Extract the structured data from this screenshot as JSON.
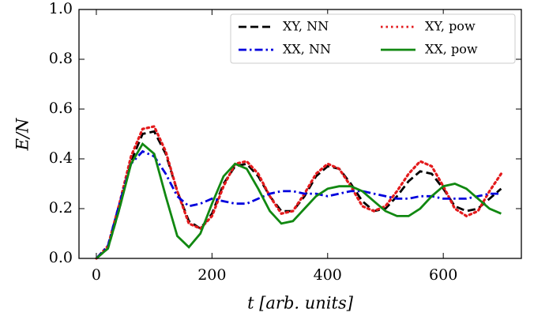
{
  "chart_data": {
    "type": "line",
    "xlabel": "t [arb. units]",
    "ylabel": "E/N",
    "x": [
      0,
      20,
      40,
      60,
      80,
      100,
      120,
      140,
      160,
      180,
      200,
      220,
      240,
      260,
      280,
      300,
      320,
      340,
      360,
      380,
      400,
      420,
      440,
      460,
      480,
      500,
      520,
      540,
      560,
      580,
      600,
      620,
      640,
      660,
      680,
      700
    ],
    "series": [
      {
        "name": "XY, NN",
        "color": "#000000",
        "linestyle": "dashed",
        "values": [
          0,
          0.04,
          0.2,
          0.39,
          0.5,
          0.51,
          0.42,
          0.27,
          0.15,
          0.12,
          0.18,
          0.3,
          0.37,
          0.38,
          0.33,
          0.25,
          0.19,
          0.19,
          0.25,
          0.33,
          0.37,
          0.36,
          0.3,
          0.23,
          0.19,
          0.2,
          0.25,
          0.31,
          0.35,
          0.34,
          0.28,
          0.21,
          0.19,
          0.2,
          0.24,
          0.28
        ]
      },
      {
        "name": "XY, pow",
        "color": "#e31a1c",
        "linestyle": "dotted",
        "values": [
          0,
          0.05,
          0.22,
          0.41,
          0.52,
          0.53,
          0.43,
          0.27,
          0.14,
          0.12,
          0.17,
          0.29,
          0.38,
          0.39,
          0.34,
          0.25,
          0.18,
          0.19,
          0.26,
          0.34,
          0.38,
          0.36,
          0.29,
          0.21,
          0.19,
          0.21,
          0.27,
          0.34,
          0.39,
          0.37,
          0.29,
          0.2,
          0.17,
          0.19,
          0.27,
          0.34
        ]
      },
      {
        "name": "XX, NN",
        "color": "#0000dd",
        "linestyle": "dashdot",
        "values": [
          0,
          0.05,
          0.22,
          0.38,
          0.43,
          0.41,
          0.34,
          0.25,
          0.21,
          0.22,
          0.24,
          0.23,
          0.22,
          0.22,
          0.24,
          0.26,
          0.27,
          0.27,
          0.26,
          0.26,
          0.25,
          0.26,
          0.27,
          0.27,
          0.26,
          0.25,
          0.24,
          0.24,
          0.25,
          0.25,
          0.24,
          0.24,
          0.24,
          0.25,
          0.26,
          0.26
        ]
      },
      {
        "name": "XX, pow",
        "color": "#118811",
        "linestyle": "solid",
        "values": [
          0,
          0.04,
          0.2,
          0.38,
          0.46,
          0.42,
          0.25,
          0.09,
          0.045,
          0.1,
          0.22,
          0.33,
          0.38,
          0.36,
          0.28,
          0.19,
          0.14,
          0.15,
          0.2,
          0.25,
          0.28,
          0.29,
          0.29,
          0.27,
          0.23,
          0.19,
          0.17,
          0.17,
          0.2,
          0.25,
          0.29,
          0.3,
          0.28,
          0.24,
          0.2,
          0.18
        ]
      }
    ],
    "xlim": [
      -30,
      735
    ],
    "xticks": [
      0,
      200,
      400,
      600
    ],
    "ylim": [
      0,
      1
    ],
    "yticks": [
      {
        "value": 0,
        "label": "0.0"
      },
      {
        "value": 0.2,
        "label": "0.2"
      },
      {
        "value": 0.4,
        "label": "0.4"
      },
      {
        "value": 0.6,
        "label": "0.6"
      },
      {
        "value": 0.8,
        "label": "0.8"
      },
      {
        "value": 1,
        "label": "1.0"
      }
    ],
    "legend": "upper right",
    "legend_columns": 2
  }
}
